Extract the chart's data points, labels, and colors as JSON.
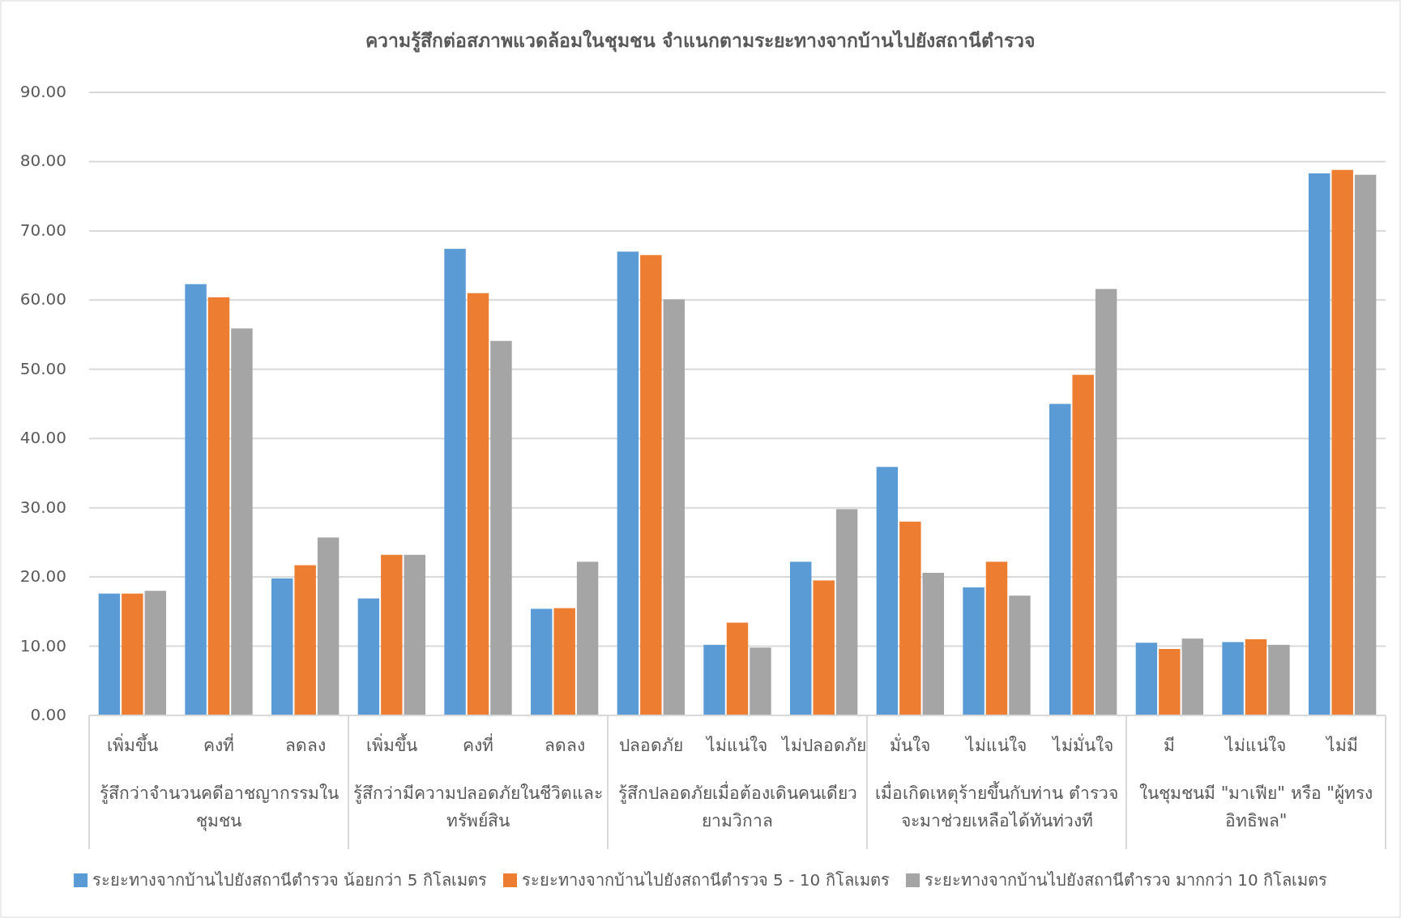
{
  "chart_data": {
    "type": "bar",
    "title": "ความรู้สึกต่อสภาพแวดล้อมในชุมชน จำแนกตามระยะทางจากบ้านไปยังสถานีตำรวจ",
    "categories": [
      "เพิ่มขึ้น",
      "คงที่",
      "ลดลง",
      "เพิ่มขึ้น",
      "คงที่",
      "ลดลง",
      "ปลอดภัย",
      "ไม่แน่ใจ",
      "ไม่ปลอดภัย",
      "มั่นใจ",
      "ไม่แน่ใจ",
      "ไม่มั่นใจ",
      "มี",
      "ไม่แน่ใจ",
      "ไม่มี"
    ],
    "annotations": [
      "รู้สึกว่าจำนวนคดีอาชญากรรมในชุมชน",
      "รู้สึกว่ามีความปลอดภัยในชีวิตและทรัพย์สิน",
      "รู้สึกปลอดภัยเมื่อต้องเดินคนเดียวยามวิกาล",
      "เมื่อเกิดเหตุร้ายขึ้นกับท่าน ตำรวจจะมาช่วยเหลือได้ทันท่วงที",
      "ในชุมชนมี \"มาเฟีย\" หรือ \"ผู้ทรงอิทธิพล\""
    ],
    "series": [
      {
        "name": "ระยะทางจากบ้านไปยังสถานีตำรวจ น้อยกว่า 5 กิโลเมตร",
        "color": "#5b9bd5",
        "values": [
          17.6,
          62.3,
          19.8,
          16.9,
          67.4,
          15.4,
          67.0,
          10.2,
          22.2,
          35.9,
          18.5,
          45.0,
          10.5,
          10.6,
          78.3
        ]
      },
      {
        "name": "ระยะทางจากบ้านไปยังสถานีตำรวจ 5 - 10 กิโลเมตร",
        "color": "#ed7d31",
        "values": [
          17.6,
          60.4,
          21.7,
          23.2,
          61.0,
          15.5,
          66.5,
          13.4,
          19.5,
          28.0,
          22.2,
          49.2,
          9.6,
          11.0,
          78.8
        ]
      },
      {
        "name": "ระยะทางจากบ้านไปยังสถานีตำรวจ มากกว่า 10 กิโลเมตร",
        "color": "#a5a5a5",
        "values": [
          18.0,
          55.9,
          25.7,
          23.2,
          54.1,
          22.2,
          60.1,
          9.8,
          29.8,
          20.6,
          17.3,
          61.6,
          11.1,
          10.2,
          78.1
        ]
      }
    ],
    "ylim": [
      0,
      90
    ],
    "yticks": [
      {
        "value": 0,
        "label": "0.00"
      },
      {
        "value": 10,
        "label": "10.00"
      },
      {
        "value": 20,
        "label": "20.00"
      },
      {
        "value": 30,
        "label": "30.00"
      },
      {
        "value": 40,
        "label": "40.00"
      },
      {
        "value": 50,
        "label": "50.00"
      },
      {
        "value": 60,
        "label": "60.00"
      },
      {
        "value": 70,
        "label": "70.00"
      },
      {
        "value": 80,
        "label": "80.00"
      },
      {
        "value": 90,
        "label": "90.00"
      }
    ],
    "grid": "y",
    "legend": "bottom"
  }
}
